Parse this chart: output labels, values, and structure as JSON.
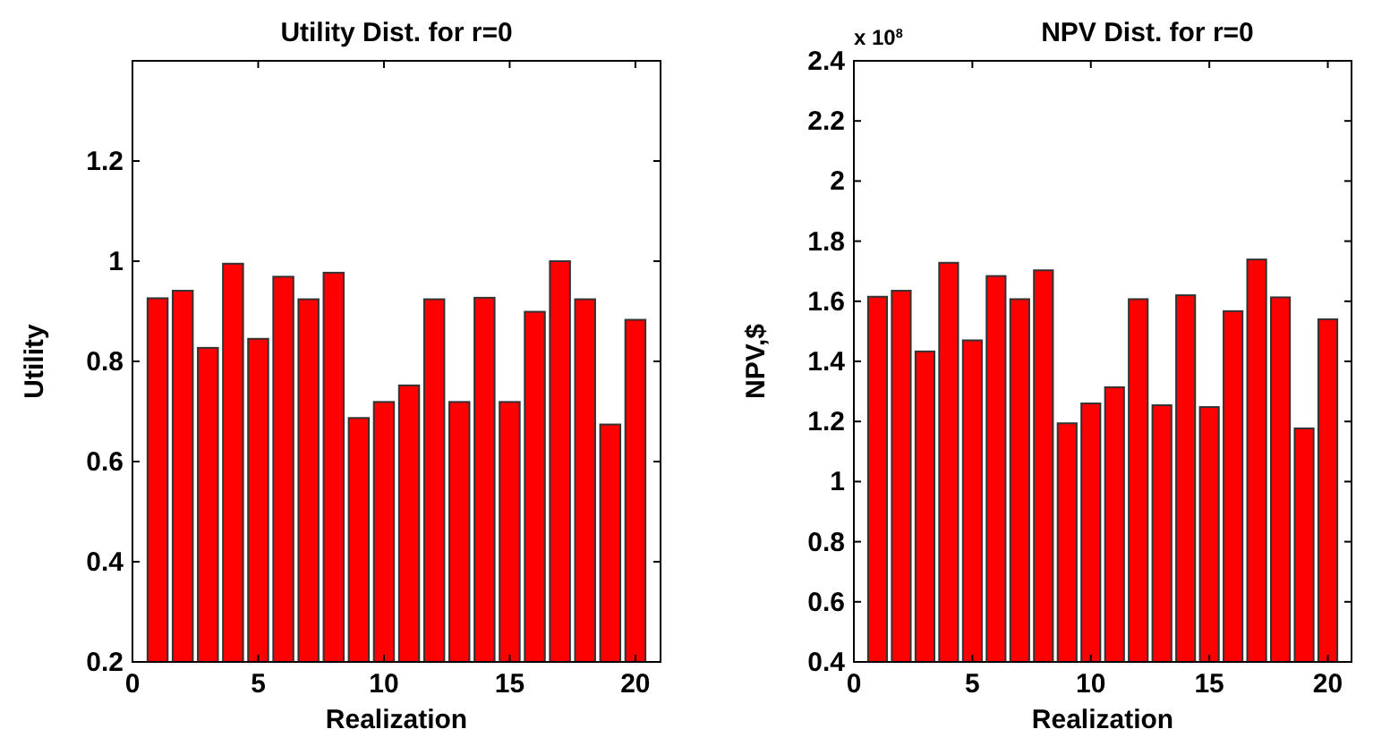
{
  "chart_data": [
    {
      "type": "bar",
      "title": "Utility Dist. for r=0",
      "xlabel": "Realization",
      "ylabel": "Utility",
      "x": [
        1,
        2,
        3,
        4,
        5,
        6,
        7,
        8,
        9,
        10,
        11,
        12,
        13,
        14,
        15,
        16,
        17,
        18,
        19,
        20
      ],
      "series": [
        {
          "color": "#ff0000",
          "values": [
            0.926,
            0.941,
            0.827,
            0.995,
            0.845,
            0.969,
            0.924,
            0.977,
            0.687,
            0.719,
            0.752,
            0.924,
            0.719,
            0.927,
            0.719,
            0.899,
            1.0,
            0.924,
            0.674,
            0.883
          ]
        }
      ],
      "xlim": [
        0,
        21
      ],
      "xticks": [
        0,
        5,
        10,
        15,
        20
      ],
      "ylim": [
        0.2,
        1.4
      ],
      "yticks": [
        0.2,
        0.4,
        0.6,
        0.8,
        1,
        1.2
      ],
      "grid": false
    },
    {
      "type": "bar",
      "title": "NPV Dist. for r=0",
      "xlabel": "Realization",
      "ylabel": "NPV,$",
      "annotations": [
        "x 10$^{8}$"
      ],
      "x": [
        1,
        2,
        3,
        4,
        5,
        6,
        7,
        8,
        9,
        10,
        11,
        12,
        13,
        14,
        15,
        16,
        17,
        18,
        19,
        20
      ],
      "series": [
        {
          "color": "#ff0000",
          "values": [
            1.615,
            1.635,
            1.433,
            1.728,
            1.47,
            1.684,
            1.607,
            1.703,
            1.194,
            1.26,
            1.314,
            1.607,
            1.254,
            1.62,
            1.248,
            1.567,
            1.739,
            1.613,
            1.177,
            1.54
          ]
        }
      ],
      "xlim": [
        0,
        21
      ],
      "xticks": [
        0,
        5,
        10,
        15,
        20
      ],
      "ylim": [
        0.4,
        2.4
      ],
      "yticks": [
        0.4,
        0.6,
        0.8,
        1,
        1.2,
        1.4,
        1.6,
        1.8,
        2,
        2.2,
        2.4
      ],
      "grid": false
    }
  ]
}
